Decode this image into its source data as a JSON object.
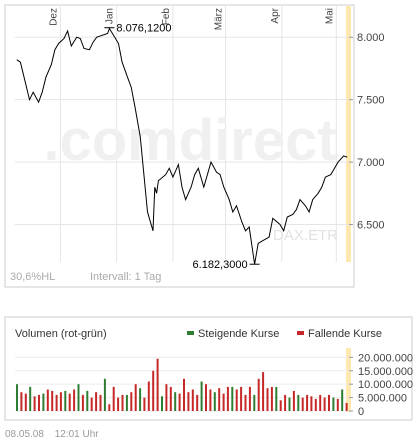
{
  "price_chart": {
    "watermark": ".comdirect",
    "index_label": "DAX.ETR",
    "hl_label": "30,6%HL",
    "interval_label": "Intervall: 1 Tag",
    "month_labels": [
      "Dez",
      "Jan",
      "Feb",
      "März",
      "Apr",
      "Mai"
    ],
    "y_tick_labels": [
      "8.000",
      "7.500",
      "7.000",
      "6.500"
    ],
    "high_label": "8.076,1200",
    "low_label": "6.182,3000",
    "line_color": "#000000",
    "highlight_color": "#fde9b0"
  },
  "volume_chart": {
    "title": "Volumen (rot-grün)",
    "legend": [
      {
        "label": "Steigende Kurse",
        "color": "#2e7d32"
      },
      {
        "label": "Fallende Kurse",
        "color": "#c62828"
      }
    ],
    "y_tick_labels": [
      "20.000.000",
      "15.000.000",
      "10.000.000",
      "5.000.000",
      "0"
    ]
  },
  "footer": {
    "date": "08.05.08",
    "time": "12:01 Uhr"
  },
  "chart_data": [
    {
      "type": "line",
      "x": [
        "2007-11-07",
        "2007-11-09",
        "2007-11-12",
        "2007-11-14",
        "2007-11-16",
        "2007-11-19",
        "2007-11-21",
        "2007-11-23",
        "2007-11-26",
        "2007-11-28",
        "2007-11-30",
        "2007-12-03",
        "2007-12-05",
        "2007-12-07",
        "2007-12-10",
        "2007-12-12",
        "2007-12-14",
        "2007-12-17",
        "2007-12-19",
        "2007-12-21",
        "2007-12-27",
        "2007-12-28",
        "2008-01-02",
        "2008-01-04",
        "2008-01-07",
        "2008-01-09",
        "2008-01-11",
        "2008-01-14",
        "2008-01-16",
        "2008-01-18",
        "2008-01-21",
        "2008-01-22",
        "2008-01-23",
        "2008-01-24",
        "2008-01-28",
        "2008-01-30",
        "2008-02-01",
        "2008-02-04",
        "2008-02-06",
        "2008-02-08",
        "2008-02-11",
        "2008-02-13",
        "2008-02-15",
        "2008-02-18",
        "2008-02-20",
        "2008-02-22",
        "2008-02-25",
        "2008-02-27",
        "2008-02-29",
        "2008-03-03",
        "2008-03-05",
        "2008-03-07",
        "2008-03-10",
        "2008-03-12",
        "2008-03-14",
        "2008-03-17",
        "2008-03-19",
        "2008-03-25",
        "2008-03-27",
        "2008-03-31",
        "2008-04-02",
        "2008-04-04",
        "2008-04-07",
        "2008-04-09",
        "2008-04-11",
        "2008-04-14",
        "2008-04-16",
        "2008-04-18",
        "2008-04-21",
        "2008-04-23",
        "2008-04-25",
        "2008-04-28",
        "2008-04-30",
        "2008-05-02",
        "2008-05-05",
        "2008-05-07"
      ],
      "values": [
        7820,
        7800,
        7620,
        7500,
        7560,
        7480,
        7560,
        7680,
        7780,
        7900,
        7950,
        7990,
        8050,
        7930,
        8000,
        7990,
        7910,
        7900,
        7960,
        8000,
        8030,
        8070,
        7950,
        7800,
        7680,
        7600,
        7450,
        7200,
        6900,
        6600,
        6450,
        6800,
        6750,
        6850,
        6900,
        6950,
        6880,
        6980,
        6800,
        6700,
        6800,
        6900,
        6950,
        6800,
        6900,
        7000,
        6920,
        6900,
        6800,
        6700,
        6600,
        6650,
        6520,
        6450,
        6480,
        6182,
        6350,
        6400,
        6550,
        6500,
        6450,
        6560,
        6580,
        6620,
        6700,
        6650,
        6600,
        6700,
        6750,
        6800,
        6880,
        6900,
        6950,
        7000,
        7050,
        7040
      ],
      "annotations": [
        {
          "label": "8.076,1200",
          "x": "2007-12-28",
          "y": 8076.12
        },
        {
          "label": "6.182,3000",
          "x": "2008-03-17",
          "y": 6182.3
        }
      ],
      "ylim": [
        6200,
        8250
      ],
      "y_ticks": [
        6500,
        7000,
        7500,
        8000
      ],
      "x_ticks": [
        "Dez",
        "Jan",
        "Feb",
        "März",
        "Apr",
        "Mai"
      ],
      "grid": true
    },
    {
      "type": "bar",
      "title": "Volumen (rot-grün)",
      "legend": [
        "Steigende Kurse",
        "Fallende Kurse"
      ],
      "legend_placement": "top-right",
      "ylim": [
        0,
        22000000
      ],
      "y_ticks": [
        0,
        5000000,
        10000000,
        15000000,
        20000000
      ],
      "series": [
        {
          "name": "Steigende Kurse",
          "values": [
            10000000,
            0,
            0,
            9000000,
            0,
            0,
            6500000,
            0,
            0,
            0,
            0,
            7500000,
            0,
            0,
            10000000,
            0,
            7500000,
            0,
            0,
            0,
            12000000,
            0,
            0,
            0,
            0,
            6000000,
            0,
            0,
            8500000,
            0,
            0,
            0,
            0,
            5500000,
            0,
            0,
            7000000,
            0,
            0,
            0,
            0,
            0,
            11000000,
            0,
            0,
            7000000,
            0,
            0,
            0,
            9000000,
            0,
            0,
            0,
            0,
            6000000,
            0,
            0,
            0,
            0,
            9000000,
            0,
            0,
            5000000,
            0,
            6000000,
            0,
            0,
            0,
            0,
            0,
            0,
            0,
            5000000,
            0,
            8000000,
            0
          ]
        },
        {
          "name": "Fallende Kurse",
          "values": [
            0,
            7000000,
            6500000,
            0,
            5500000,
            6000000,
            0,
            8000000,
            7500000,
            6000000,
            7000000,
            0,
            6500000,
            8000000,
            0,
            6000000,
            0,
            5000000,
            7000000,
            6000000,
            0,
            2500000,
            9000000,
            5000000,
            6000000,
            0,
            7000000,
            10000000,
            0,
            5000000,
            11000000,
            15000000,
            19500000,
            0,
            10000000,
            9000000,
            0,
            6500000,
            12000000,
            7000000,
            8000000,
            6000000,
            0,
            10000000,
            8000000,
            0,
            8500000,
            6500000,
            9000000,
            0,
            8000000,
            9000000,
            6000000,
            9000000,
            0,
            12000000,
            14500000,
            8500000,
            9000000,
            0,
            4000000,
            6000000,
            0,
            7500000,
            0,
            5000000,
            6000000,
            5500000,
            4500000,
            6000000,
            5000000,
            6000000,
            0,
            4500000,
            0,
            3000000
          ]
        }
      ]
    }
  ]
}
